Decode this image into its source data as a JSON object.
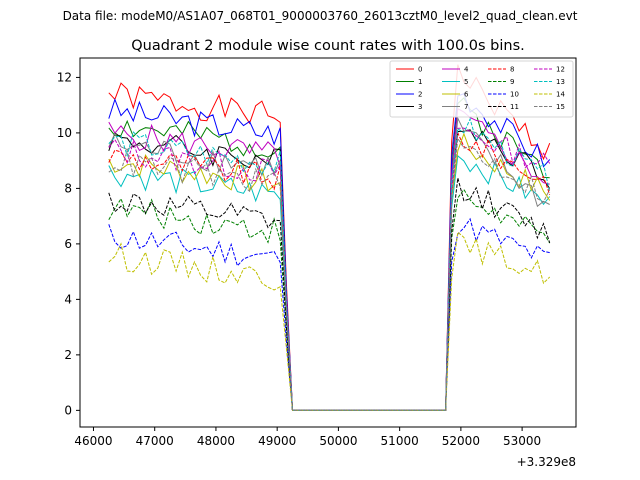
{
  "suptitle": "Data file: modeM0/AS1A07_068T01_9000003760_26013cztM0_level2_quad_clean.evt",
  "chart_data": {
    "type": "line",
    "title": "Quadrant 2 module wise count rates with 100.0s bins.",
    "xlabel": "",
    "ylabel": "",
    "x_offset_label": "+3.329e8",
    "xlim": [
      45780,
      53880
    ],
    "ylim": [
      -0.6,
      12.7
    ],
    "x_ticks": [
      46000,
      47000,
      48000,
      49000,
      50000,
      51000,
      52000,
      53000
    ],
    "x_tick_labels": [
      "46000",
      "47000",
      "48000",
      "49000",
      "50000",
      "51000",
      "52000",
      "53000"
    ],
    "y_ticks": [
      0,
      2,
      4,
      6,
      8,
      10,
      12
    ],
    "y_tick_labels": [
      "0",
      "2",
      "4",
      "6",
      "8",
      "10",
      "12"
    ],
    "grid": false,
    "legend_position": "top-right",
    "legend_columns": 4,
    "bin_seconds": 100,
    "time_axis": {
      "start": 46250,
      "step": 100,
      "points": 73,
      "gap_start": 49250,
      "gap_end": 51750
    },
    "series": [
      {
        "name": "0",
        "color": "#ff0000",
        "dash": "solid",
        "level": 11.4,
        "end_level": 9.3
      },
      {
        "name": "1",
        "color": "#008000",
        "dash": "solid",
        "level": 10.3,
        "end_level": 8.6
      },
      {
        "name": "2",
        "color": "#0000ff",
        "dash": "solid",
        "level": 10.8,
        "end_level": 8.9
      },
      {
        "name": "3",
        "color": "#000000",
        "dash": "solid",
        "level": 9.8,
        "end_level": 8.4
      },
      {
        "name": "4",
        "color": "#bf00bf",
        "dash": "solid",
        "level": 10.0,
        "end_level": 8.2
      },
      {
        "name": "5",
        "color": "#00bfbf",
        "dash": "solid",
        "level": 8.6,
        "end_level": 7.4
      },
      {
        "name": "6",
        "color": "#bfbf00",
        "dash": "solid",
        "level": 9.0,
        "end_level": 7.8
      },
      {
        "name": "7",
        "color": "#808080",
        "dash": "solid",
        "level": 9.6,
        "end_level": 7.3
      },
      {
        "name": "8",
        "color": "#ff0000",
        "dash": "dashed",
        "level": 9.2,
        "end_level": 8.2
      },
      {
        "name": "9",
        "color": "#008000",
        "dash": "dashed",
        "level": 7.3,
        "end_level": 6.1
      },
      {
        "name": "10",
        "color": "#0000ff",
        "dash": "dashed",
        "level": 6.3,
        "end_level": 5.4
      },
      {
        "name": "11",
        "color": "#000000",
        "dash": "dashed",
        "level": 7.6,
        "end_level": 6.3
      },
      {
        "name": "12",
        "color": "#bf00bf",
        "dash": "dashed",
        "level": 9.4,
        "end_level": 8.8
      },
      {
        "name": "13",
        "color": "#00bfbf",
        "dash": "dashed",
        "level": 9.7,
        "end_level": 8.3
      },
      {
        "name": "14",
        "color": "#bfbf00",
        "dash": "dashed",
        "level": 5.6,
        "end_level": 4.9
      },
      {
        "name": "15",
        "color": "#808080",
        "dash": "dashed",
        "level": 9.0,
        "end_level": 7.7
      }
    ]
  }
}
